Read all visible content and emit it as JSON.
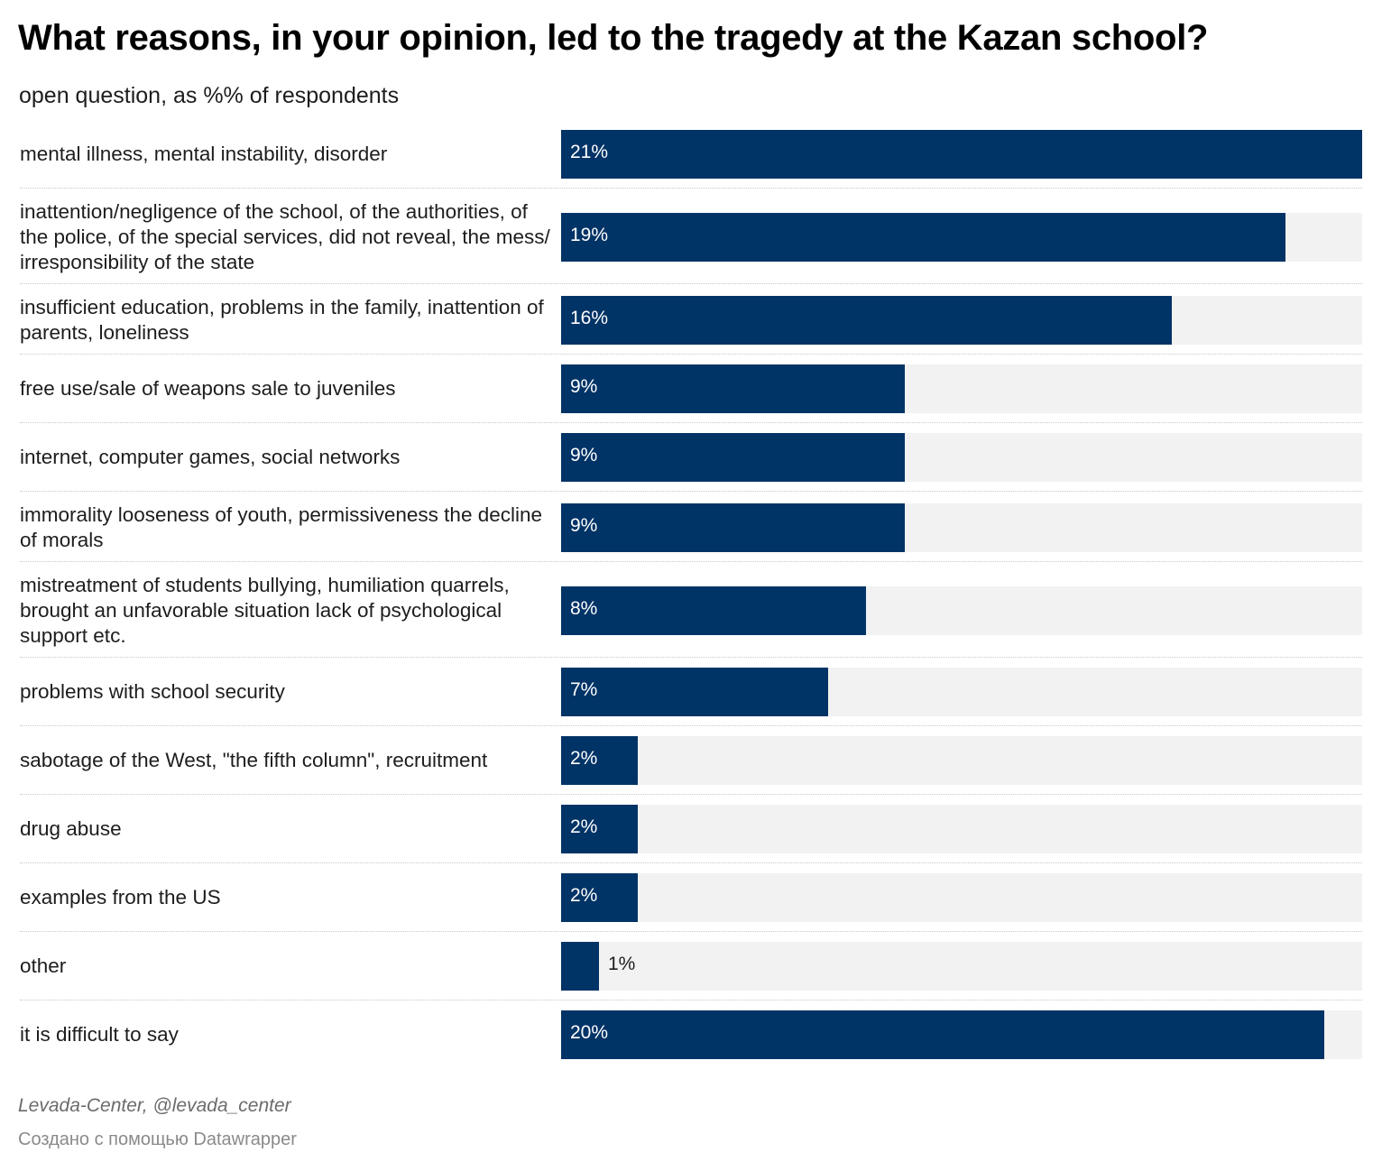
{
  "title": "What reasons, in your opinion, led to the tragedy at the Kazan school?",
  "subtitle": "open question, as %% of respondents",
  "source": "Levada-Center, @levada_center",
  "credit": "Создано с помощью Datawrapper",
  "colors": {
    "bar": "#003366",
    "track": "#f2f2f2",
    "label_inside": "#ffffff",
    "label_outside": "#1d1d1d"
  },
  "chart_data": {
    "type": "bar",
    "orientation": "horizontal",
    "categories": [
      "mental illness, mental instability, disorder",
      "inattention/negligence of the school, of the authorities, of the police, of the special services, did not reveal, the mess/ irresponsibility of the state",
      "insufficient education, problems in the family, inattention of parents, loneliness",
      "free use/sale of weapons sale to juveniles",
      "internet, computer games, social networks",
      "immorality looseness of youth, permissiveness the decline of morals",
      "mistreatment of students bullying, humiliation quarrels, brought an unfavorable situation lack of psychological support etc.",
      "problems with school security",
      "sabotage of the West, \"the fifth column\", recruitment",
      "drug abuse",
      "examples from the US",
      "other",
      "it is difficult to say"
    ],
    "values": [
      21,
      19,
      16,
      9,
      9,
      9,
      8,
      7,
      2,
      2,
      2,
      1,
      20
    ],
    "value_labels": [
      "21%",
      "19%",
      "16%",
      "9%",
      "9%",
      "9%",
      "8%",
      "7%",
      "2%",
      "2%",
      "2%",
      "1%",
      "20%"
    ],
    "xlim": [
      0,
      21
    ],
    "grid": false,
    "legend": "none"
  }
}
